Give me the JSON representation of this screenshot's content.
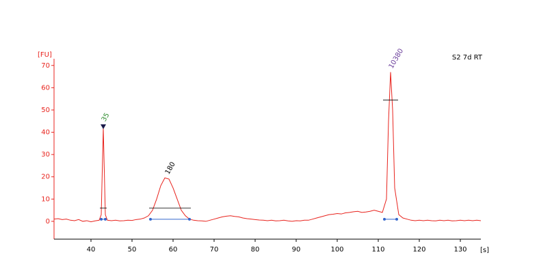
{
  "chart_data": {
    "type": "line",
    "title": "S2 7d RT",
    "y_label": "[FU]",
    "x_label": "[s]",
    "xlim": [
      31,
      135
    ],
    "ylim": [
      -8,
      73
    ],
    "xticks": [
      40,
      50,
      60,
      70,
      80,
      90,
      100,
      110,
      120,
      130
    ],
    "yticks": [
      0,
      10,
      20,
      30,
      40,
      50,
      60,
      70
    ],
    "x": [
      31,
      32,
      33,
      34,
      35,
      36,
      37,
      38,
      39,
      40,
      41,
      42,
      42.5,
      43,
      43.5,
      44,
      45,
      46,
      47,
      48,
      49,
      50,
      51,
      52,
      53,
      54,
      55,
      56,
      57,
      58,
      59,
      60,
      61,
      62,
      63,
      64,
      65,
      66,
      67,
      68,
      69,
      70,
      71,
      72,
      73,
      74,
      75,
      76,
      77,
      78,
      79,
      80,
      81,
      82,
      83,
      84,
      85,
      86,
      87,
      88,
      89,
      90,
      91,
      92,
      93,
      94,
      95,
      96,
      97,
      98,
      99,
      100,
      101,
      102,
      103,
      104,
      105,
      106,
      107,
      108,
      109,
      110,
      111,
      112,
      112.5,
      113,
      113.5,
      114,
      115,
      116,
      117,
      118,
      119,
      120,
      121,
      122,
      123,
      124,
      125,
      126,
      127,
      128,
      129,
      130,
      131,
      132,
      133,
      134,
      135
    ],
    "series": [
      {
        "name": "S2 7d RT",
        "color": "#e8221c",
        "values": [
          1,
          1.2,
          0.8,
          1,
          0.5,
          0.3,
          0.8,
          0,
          0.3,
          -0.2,
          0.2,
          0.5,
          3,
          42,
          3,
          0.5,
          0.3,
          0.5,
          0.2,
          0.3,
          0.5,
          0.4,
          0.8,
          1,
          1.5,
          2.5,
          5,
          10,
          16,
          19.5,
          19,
          15,
          10,
          5,
          2.5,
          1,
          0.5,
          0.3,
          0.2,
          0,
          0.5,
          1,
          1.5,
          2,
          2.3,
          2.5,
          2.2,
          2,
          1.5,
          1.2,
          1,
          0.8,
          0.6,
          0.5,
          0.3,
          0.5,
          0.2,
          0.3,
          0.5,
          0.2,
          0,
          0.3,
          0.2,
          0.5,
          0.5,
          1,
          1.5,
          2,
          2.5,
          3,
          3.2,
          3.5,
          3.3,
          3.8,
          4,
          4.3,
          4.5,
          4,
          4.2,
          4.5,
          5,
          4.5,
          4,
          10,
          45,
          67,
          50,
          15,
          3,
          1.5,
          1,
          0.5,
          0.3,
          0.5,
          0.3,
          0.5,
          0.3,
          0.2,
          0.5,
          0.3,
          0.5,
          0.2,
          0.3,
          0.5,
          0.3,
          0.5,
          0.3,
          0.5,
          0.3
        ]
      }
    ],
    "peaks": [
      {
        "label": "35",
        "x": 43,
        "y": 42,
        "color": "#2a8a2a",
        "start": 42.5,
        "end": 43.5,
        "level": 6,
        "marker": true
      },
      {
        "label": "180",
        "x": 58.5,
        "y": 19.5,
        "color": "#000000",
        "start": 54.5,
        "end": 64,
        "level": 6,
        "marker": false
      },
      {
        "label": "10380",
        "x": 113,
        "y": 67,
        "color": "#6a3d9a",
        "start": 111.5,
        "end": 114.5,
        "level": 54.5,
        "marker": false
      }
    ]
  }
}
